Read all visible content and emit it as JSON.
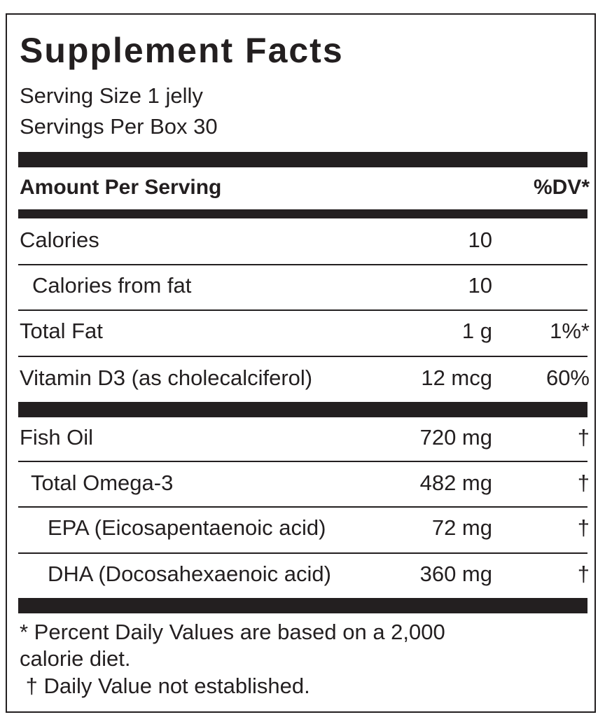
{
  "title": "Supplement Facts",
  "serving_size": "Serving Size 1 jelly",
  "servings_per": "Servings Per Box 30",
  "header": {
    "amount": "Amount Per Serving",
    "dv": "%DV*"
  },
  "rows": [
    {
      "label": "Calories",
      "amount": "10",
      "dv": ""
    },
    {
      "label": "Calories from fat",
      "amount": "10",
      "dv": ""
    },
    {
      "label": "Total Fat",
      "amount": "1 g",
      "dv": "1%*"
    },
    {
      "label": "Vitamin D3 (as cholecalciferol)",
      "amount": "12 mcg",
      "dv": "60%"
    },
    {
      "label": "Fish Oil",
      "amount": "720 mg",
      "dv": "†"
    },
    {
      "label": "Total Omega-3",
      "amount": "482 mg",
      "dv": "†"
    },
    {
      "label": "EPA (Eicosapentaenoic acid)",
      "amount": "72 mg",
      "dv": "†"
    },
    {
      "label": "DHA (Docosahexaenoic acid)",
      "amount": "360 mg",
      "dv": "†"
    }
  ],
  "footnotes": {
    "line1": "* Percent Daily Values are based on a 2,000",
    "line2": "calorie diet.",
    "line3": " † Daily Value not established."
  }
}
